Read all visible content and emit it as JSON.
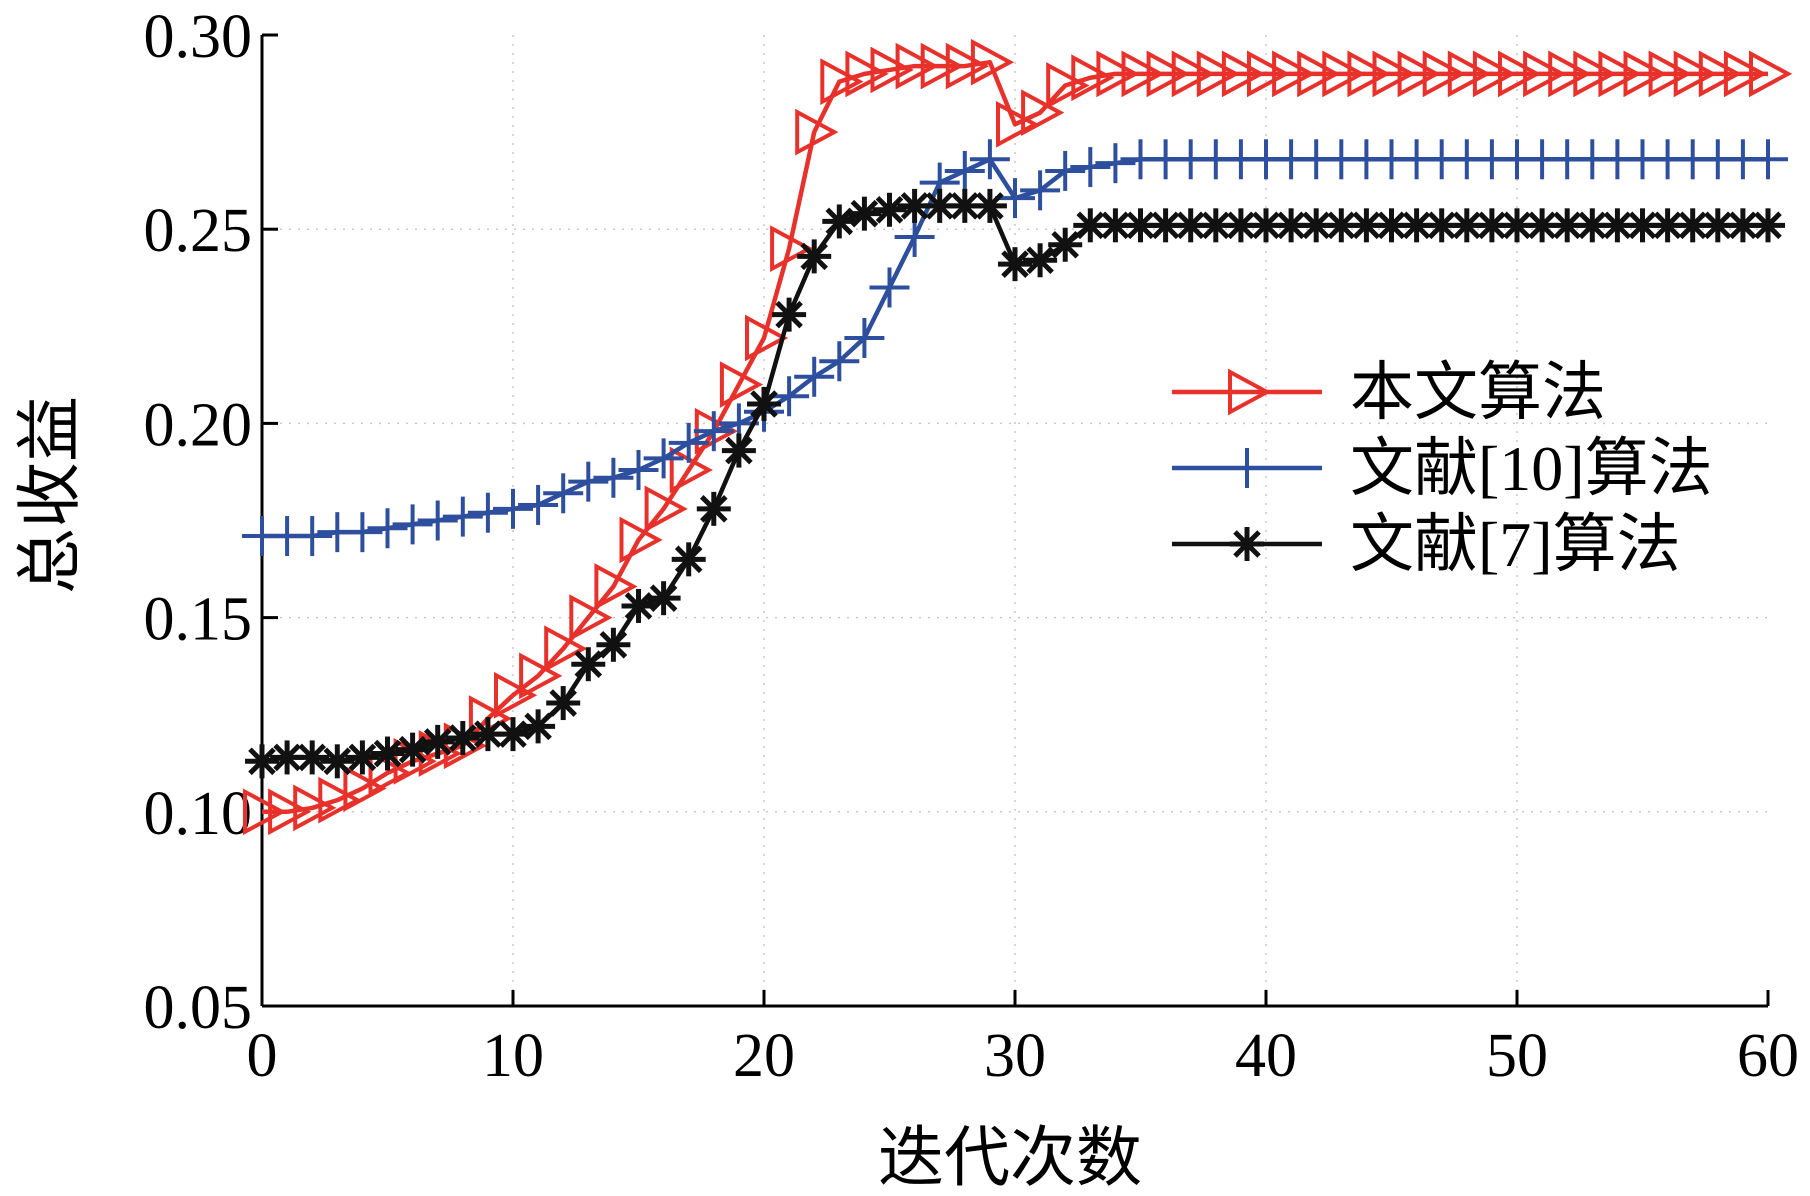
{
  "chart_data": {
    "type": "line",
    "title": "",
    "xlabel": "迭代次数",
    "ylabel": "总收益",
    "xlim": [
      0,
      60
    ],
    "ylim": [
      0.05,
      0.3
    ],
    "x_ticks": [
      "0",
      "10",
      "20",
      "30",
      "40",
      "50",
      "60"
    ],
    "y_ticks": [
      "0.05",
      "0.10",
      "0.15",
      "0.20",
      "0.25",
      "0.30"
    ],
    "grid": "dotted",
    "legend_position": "right",
    "x": [
      0,
      1,
      2,
      3,
      4,
      5,
      6,
      7,
      8,
      9,
      10,
      11,
      12,
      13,
      14,
      15,
      16,
      17,
      18,
      19,
      20,
      21,
      22,
      23,
      24,
      25,
      26,
      27,
      28,
      29,
      30,
      31,
      32,
      33,
      34,
      35,
      36,
      37,
      38,
      39,
      40,
      41,
      42,
      43,
      44,
      45,
      46,
      47,
      48,
      49,
      50,
      51,
      52,
      53,
      54,
      55,
      56,
      57,
      58,
      59,
      60
    ],
    "series": [
      {
        "name": "本文算法",
        "color": "#e8312a",
        "marker": "triangle-right",
        "values": [
          0.1,
          0.1,
          0.101,
          0.103,
          0.106,
          0.11,
          0.113,
          0.115,
          0.117,
          0.124,
          0.13,
          0.135,
          0.142,
          0.15,
          0.158,
          0.17,
          0.178,
          0.188,
          0.198,
          0.21,
          0.222,
          0.245,
          0.275,
          0.288,
          0.29,
          0.291,
          0.292,
          0.292,
          0.292,
          0.293,
          0.277,
          0.28,
          0.287,
          0.289,
          0.29,
          0.29,
          0.29,
          0.29,
          0.29,
          0.29,
          0.29,
          0.29,
          0.29,
          0.29,
          0.29,
          0.29,
          0.29,
          0.29,
          0.29,
          0.29,
          0.29,
          0.29,
          0.29,
          0.29,
          0.29,
          0.29,
          0.29,
          0.29,
          0.29,
          0.29,
          0.29
        ]
      },
      {
        "name": "文献[10]算法",
        "color": "#2d4f9e",
        "marker": "plus",
        "values": [
          0.171,
          0.171,
          0.171,
          0.172,
          0.172,
          0.173,
          0.174,
          0.175,
          0.176,
          0.177,
          0.178,
          0.179,
          0.182,
          0.185,
          0.186,
          0.188,
          0.191,
          0.195,
          0.198,
          0.2,
          0.203,
          0.207,
          0.212,
          0.216,
          0.222,
          0.235,
          0.248,
          0.262,
          0.265,
          0.268,
          0.258,
          0.26,
          0.265,
          0.266,
          0.267,
          0.268,
          0.268,
          0.268,
          0.268,
          0.268,
          0.268,
          0.268,
          0.268,
          0.268,
          0.268,
          0.268,
          0.268,
          0.268,
          0.268,
          0.268,
          0.268,
          0.268,
          0.268,
          0.268,
          0.268,
          0.268,
          0.268,
          0.268,
          0.268,
          0.268,
          0.268
        ]
      },
      {
        "name": "文献[7]算法",
        "color": "#111111",
        "marker": "asterisk",
        "values": [
          0.113,
          0.114,
          0.114,
          0.113,
          0.114,
          0.115,
          0.116,
          0.118,
          0.119,
          0.12,
          0.12,
          0.122,
          0.128,
          0.138,
          0.143,
          0.153,
          0.155,
          0.165,
          0.178,
          0.193,
          0.205,
          0.228,
          0.243,
          0.252,
          0.254,
          0.255,
          0.256,
          0.256,
          0.256,
          0.256,
          0.241,
          0.242,
          0.246,
          0.251,
          0.251,
          0.251,
          0.251,
          0.251,
          0.251,
          0.251,
          0.251,
          0.251,
          0.251,
          0.251,
          0.251,
          0.251,
          0.251,
          0.251,
          0.251,
          0.251,
          0.251,
          0.251,
          0.251,
          0.251,
          0.251,
          0.251,
          0.251,
          0.251,
          0.251,
          0.251,
          0.251
        ]
      }
    ]
  }
}
